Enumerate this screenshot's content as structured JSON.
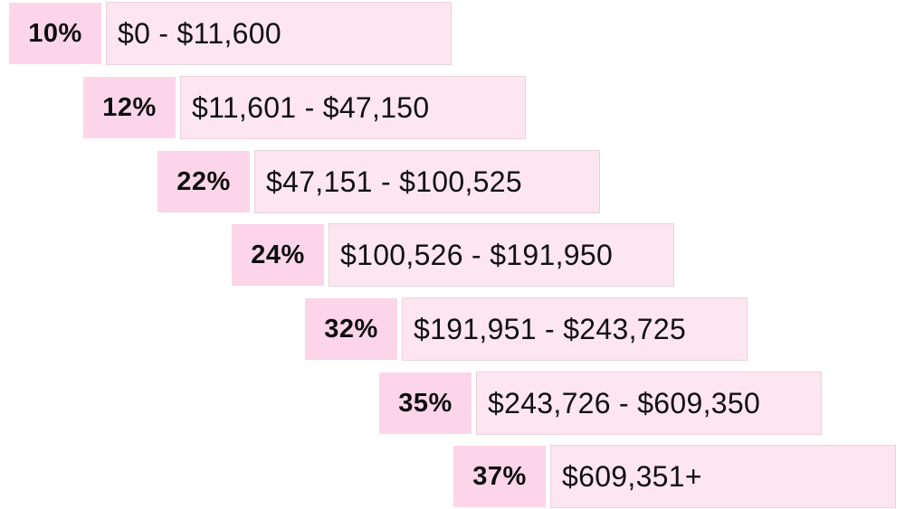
{
  "colors": {
    "rate_bg": "#fcd6e8",
    "range_bg": "#fde6f0"
  },
  "brackets": [
    {
      "rate": "10%",
      "range": "$0 - $11,600"
    },
    {
      "rate": "12%",
      "range": "$11,601 - $47,150"
    },
    {
      "rate": "22%",
      "range": "$47,151 - $100,525"
    },
    {
      "rate": "24%",
      "range": "$100,526 - $191,950"
    },
    {
      "rate": "32%",
      "range": "$191,951 - $243,725"
    },
    {
      "rate": "35%",
      "range": "$243,726 - $609,350"
    },
    {
      "rate": "37%",
      "range": "$609,351+"
    }
  ]
}
